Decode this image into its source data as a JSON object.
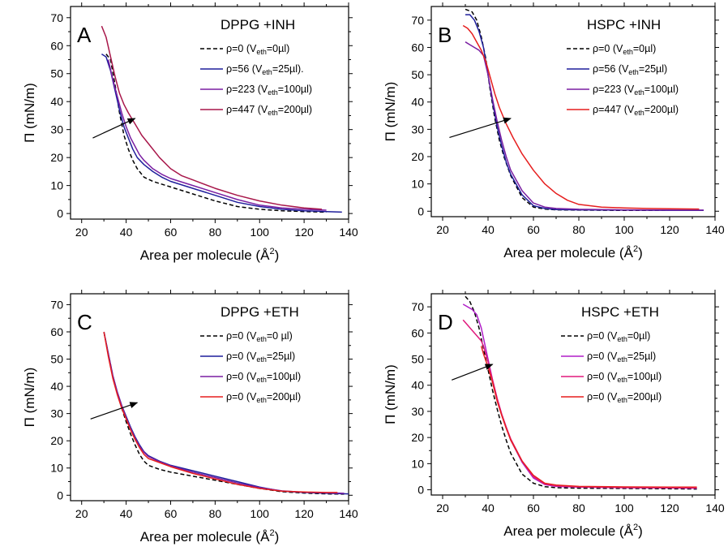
{
  "figure": {
    "background": "#ffffff"
  },
  "chart_data": [
    {
      "letter": "A",
      "type": "line",
      "title": "DPPG +INH",
      "xlabel": "Area per molecule",
      "xlabel_unit": "Å",
      "xlabel_exp": "2",
      "ylabel": "Π (mN/m)",
      "xlim": [
        15,
        140
      ],
      "ylim": [
        -2,
        74
      ],
      "xticks": [
        20,
        40,
        60,
        80,
        100,
        120,
        140
      ],
      "yticks": [
        0,
        10,
        20,
        30,
        40,
        50,
        60,
        70
      ],
      "grid": false,
      "legend_position": "top-right",
      "arrow": {
        "from": [
          25,
          27
        ],
        "to": [
          44,
          34
        ]
      },
      "series": [
        {
          "name": "ρ=0    (V_eth=0µl)",
          "legend_main": "ρ=0    (V",
          "legend_sub": "eth",
          "legend_end": "=0µl)",
          "color": "#000000",
          "dash": "5,3",
          "x": [
            31,
            33,
            35,
            37,
            39,
            41,
            43,
            45,
            48,
            52,
            60,
            70,
            80,
            90,
            100,
            110,
            120,
            130
          ],
          "y": [
            57,
            55,
            46,
            36,
            28,
            23,
            19,
            16,
            13,
            11.5,
            9.5,
            7,
            4.5,
            2.5,
            1.5,
            1,
            0.7,
            0.5
          ]
        },
        {
          "name": "ρ=56   (V_eth=25µl).",
          "legend_main": "ρ=56   (V",
          "legend_sub": "eth",
          "legend_end": "=25µl).",
          "color": "#1f1f9c",
          "dash": "",
          "x": [
            29,
            31,
            33,
            35,
            37,
            39,
            41,
            43,
            45,
            48,
            52,
            56,
            60,
            70,
            80,
            90,
            100,
            110,
            120,
            130,
            137
          ],
          "y": [
            57,
            56,
            51,
            44,
            37,
            31,
            27,
            23,
            20,
            17.5,
            15,
            13,
            11.5,
            9,
            6.5,
            4,
            2.5,
            1.5,
            1,
            0.7,
            0.5
          ]
        },
        {
          "name": "ρ=223 (V_eth=100µl)",
          "legend_main": "ρ=223 (V",
          "legend_sub": "eth",
          "legend_end": "=100µl)",
          "color": "#7a1fa2",
          "dash": "",
          "x": [
            32,
            34,
            36,
            38,
            40,
            42,
            44,
            46,
            48,
            52,
            56,
            60,
            70,
            80,
            90,
            100,
            110,
            120,
            130
          ],
          "y": [
            55,
            48,
            42,
            36,
            31,
            27,
            24,
            21,
            19,
            16,
            14,
            12.5,
            10,
            7.5,
            5,
            3,
            2,
            1.5,
            1.2
          ]
        },
        {
          "name": "ρ=447 (V_eth=200µl)",
          "legend_main": "ρ=447 (V",
          "legend_sub": "eth",
          "legend_end": "=200µl)",
          "color": "#a8174a",
          "dash": "",
          "x": [
            29,
            31,
            33,
            35,
            37,
            39,
            41,
            44,
            47,
            50,
            55,
            60,
            65,
            70,
            80,
            90,
            100,
            110,
            120,
            128
          ],
          "y": [
            67,
            63,
            56,
            49,
            43,
            39,
            36,
            32,
            28,
            25,
            20,
            16,
            13.5,
            12,
            9,
            6.5,
            4.5,
            3,
            2,
            1.5
          ]
        }
      ]
    },
    {
      "letter": "B",
      "type": "line",
      "title": "HSPC +INH",
      "xlabel": "Area per molecule",
      "xlabel_unit": "Å",
      "xlabel_exp": "2",
      "ylabel": "Π (mN/m)",
      "xlim": [
        15,
        140
      ],
      "ylim": [
        -2,
        75
      ],
      "xticks": [
        20,
        40,
        60,
        80,
        100,
        120,
        140
      ],
      "yticks": [
        0,
        10,
        20,
        30,
        40,
        50,
        60,
        70
      ],
      "grid": false,
      "legend_position": "top-right",
      "arrow": {
        "from": [
          23,
          27
        ],
        "to": [
          50,
          34
        ]
      },
      "series": [
        {
          "name": "ρ=0    (V_eth=0µl)",
          "legend_main": "ρ=0    (V",
          "legend_sub": "eth",
          "legend_end": "=0µl)",
          "color": "#000000",
          "dash": "5,3",
          "x": [
            30,
            33,
            35,
            37,
            39,
            41,
            43,
            45,
            47,
            50,
            55,
            60,
            65,
            70,
            80,
            100,
            120,
            135
          ],
          "y": [
            74,
            73,
            70,
            64,
            56,
            44,
            34,
            26,
            20,
            13,
            5,
            1.5,
            0.8,
            0.5,
            0.4,
            0.3,
            0.3,
            0.3
          ]
        },
        {
          "name": "ρ=56   (V_eth=25µl)",
          "legend_main": "ρ=56   (V",
          "legend_sub": "eth",
          "legend_end": "=25µl)",
          "color": "#1f1f9c",
          "dash": "",
          "x": [
            30,
            32,
            34,
            36,
            38,
            40,
            42,
            44,
            46,
            48,
            50,
            55,
            60,
            65,
            70,
            80,
            100,
            120,
            135
          ],
          "y": [
            72,
            72,
            70,
            66,
            60,
            50,
            40,
            31,
            24,
            18,
            13.5,
            6,
            2,
            1,
            0.6,
            0.5,
            0.4,
            0.3,
            0.3
          ]
        },
        {
          "name": "ρ=223 (V_eth=100µl)",
          "legend_main": "ρ=223 (V",
          "legend_sub": "eth",
          "legend_end": "=100µl)",
          "color": "#7a1fa2",
          "dash": "",
          "x": [
            30,
            32,
            34,
            36,
            38,
            40,
            42,
            44,
            46,
            48,
            50,
            55,
            60,
            65,
            70,
            80,
            100,
            120,
            135
          ],
          "y": [
            62,
            61,
            60,
            59,
            57,
            50,
            41,
            33,
            26,
            20,
            15,
            7.5,
            3,
            1.5,
            1,
            0.7,
            0.5,
            0.4,
            0.4
          ]
        },
        {
          "name": "ρ=447 (V_eth=200µl)",
          "legend_main": "ρ=447 (V",
          "legend_sub": "eth",
          "legend_end": "=200µl)",
          "color": "#e61e1e",
          "dash": "",
          "x": [
            29,
            31,
            33,
            35,
            37,
            39,
            41,
            43,
            45,
            48,
            51,
            55,
            60,
            65,
            70,
            75,
            80,
            90,
            100,
            110,
            120,
            133
          ],
          "y": [
            68,
            67,
            65,
            62,
            59,
            55,
            49,
            43,
            38,
            32,
            27,
            21,
            15,
            10,
            6.5,
            4,
            2.5,
            1.5,
            1.2,
            1,
            0.9,
            0.8
          ]
        }
      ]
    },
    {
      "letter": "C",
      "type": "line",
      "title": "DPPG +ETH",
      "xlabel": "Area per molecule",
      "xlabel_unit": "Å",
      "xlabel_exp": "2",
      "ylabel": "Π (mN/m)",
      "xlim": [
        15,
        140
      ],
      "ylim": [
        -2,
        74
      ],
      "xticks": [
        20,
        40,
        60,
        80,
        100,
        120,
        140
      ],
      "yticks": [
        0,
        10,
        20,
        30,
        40,
        50,
        60,
        70
      ],
      "grid": false,
      "legend_position": "top-right",
      "arrow": {
        "from": [
          24,
          28
        ],
        "to": [
          45,
          34
        ]
      },
      "series": [
        {
          "name": "ρ=0 (V_eth=0 µl)",
          "legend_main": "ρ=0 (V",
          "legend_sub": "eth",
          "legend_end": "=0 µl)",
          "color": "#000000",
          "dash": "5,3",
          "x": [
            30,
            32,
            34,
            36,
            38,
            40,
            42,
            44,
            46,
            48,
            50,
            55,
            60,
            70,
            80,
            90,
            100,
            110,
            120,
            130,
            138
          ],
          "y": [
            60,
            52,
            44,
            37.5,
            32,
            27,
            22.5,
            18.5,
            15,
            12.5,
            11,
            9.5,
            8.5,
            7,
            5.5,
            4,
            2.5,
            1.3,
            0.8,
            0.5,
            0.4
          ]
        },
        {
          "name": "ρ=0 (V_eth=25µl)",
          "legend_main": "ρ=0 (V",
          "legend_sub": "eth",
          "legend_end": "=25µl)",
          "color": "#1f1f9c",
          "dash": "",
          "x": [
            30,
            32,
            34,
            36,
            38,
            40,
            42,
            44,
            46,
            48,
            50,
            55,
            60,
            70,
            80,
            90,
            100,
            110,
            120,
            130,
            140
          ],
          "y": [
            60,
            52,
            44,
            38,
            33,
            29,
            25,
            21.5,
            18.5,
            16,
            14.5,
            12.5,
            11,
            9,
            7,
            5,
            3,
            1.5,
            1,
            0.7,
            0.5
          ]
        },
        {
          "name": "ρ=0 (V_eth=100µl)",
          "legend_main": "ρ=0 (V",
          "legend_sub": "eth",
          "legend_end": "=100µl)",
          "color": "#7a1fa2",
          "dash": "",
          "x": [
            30,
            32,
            34,
            36,
            38,
            40,
            42,
            44,
            46,
            48,
            50,
            55,
            60,
            70,
            80,
            90,
            100,
            110,
            120,
            130,
            138
          ],
          "y": [
            60,
            52,
            44,
            38,
            33,
            28.5,
            24.5,
            21,
            18,
            15.8,
            14.2,
            12.3,
            10.8,
            8.5,
            6.5,
            4.5,
            2.8,
            1.6,
            1.1,
            0.9,
            0.7
          ]
        },
        {
          "name": "ρ=0 (V_eth=200µl)",
          "legend_main": "ρ=0 (V",
          "legend_sub": "eth",
          "legend_end": "=200µl)",
          "color": "#e61e1e",
          "dash": "",
          "x": [
            30,
            32,
            34,
            36,
            38,
            40,
            42,
            44,
            46,
            48,
            50,
            55,
            60,
            70,
            80,
            90,
            100,
            110,
            120,
            130,
            135
          ],
          "y": [
            60,
            51,
            43,
            37,
            32,
            28,
            24,
            20.5,
            17.5,
            15,
            13.5,
            12,
            10.5,
            8,
            6,
            4,
            2.5,
            1.5,
            1.2,
            1,
            1
          ]
        }
      ]
    },
    {
      "letter": "D",
      "type": "line",
      "title": "HSPC +ETH",
      "xlabel": "Area per molecule",
      "xlabel_unit": "Å",
      "xlabel_exp": "2",
      "ylabel": "Π (mN/m)",
      "xlim": [
        15,
        140
      ],
      "ylim": [
        -2,
        75
      ],
      "xticks": [
        20,
        40,
        60,
        80,
        100,
        120,
        140
      ],
      "yticks": [
        0,
        10,
        20,
        30,
        40,
        50,
        60,
        70
      ],
      "grid": false,
      "legend_position": "top-right",
      "arrow": {
        "from": [
          24,
          42
        ],
        "to": [
          42,
          48
        ]
      },
      "series": [
        {
          "name": "ρ=0 (V_eth=0µl)",
          "legend_main": "ρ=0 (V",
          "legend_sub": "eth",
          "legend_end": "=0µl)",
          "color": "#000000",
          "dash": "5,3",
          "x": [
            30,
            32,
            34,
            36,
            38,
            40,
            42,
            44,
            46,
            48,
            50,
            55,
            60,
            65,
            70,
            80,
            100,
            120,
            132
          ],
          "y": [
            74,
            72,
            68,
            62,
            54,
            46,
            38,
            31,
            24.5,
            19,
            14,
            6,
            2.5,
            1.2,
            0.8,
            0.6,
            0.5,
            0.4,
            0.3
          ]
        },
        {
          "name": "ρ=0 (V_eth=25µl)",
          "legend_main": "ρ=0 (V",
          "legend_sub": "eth",
          "legend_end": "=25µl)",
          "color": "#b01ec8",
          "dash": "",
          "x": [
            29,
            31,
            33,
            35,
            37,
            38,
            40,
            42,
            44,
            46,
            48,
            50,
            55,
            60,
            65,
            70,
            80,
            100,
            120,
            132
          ],
          "y": [
            71,
            70,
            69,
            67,
            62,
            58,
            50,
            42,
            35,
            29,
            24,
            19,
            10.5,
            4.5,
            2,
            1.3,
            1,
            0.8,
            0.7,
            0.6
          ]
        },
        {
          "name": "ρ=0 (V_eth=100µl)",
          "legend_main": "ρ=0 (V",
          "legend_sub": "eth",
          "legend_end": "=100µl)",
          "color": "#e0197d",
          "dash": "",
          "x": [
            29,
            31,
            33,
            35,
            37,
            38,
            40,
            42,
            44,
            46,
            48,
            50,
            55,
            60,
            65,
            70,
            80,
            100,
            120,
            132
          ],
          "y": [
            65,
            63,
            61,
            59,
            57,
            55,
            49,
            42,
            35,
            29,
            24,
            19.5,
            11,
            5,
            2.2,
            1.5,
            1.1,
            0.9,
            0.8,
            0.7
          ]
        },
        {
          "name": "ρ=0 (V_eth=200µl)",
          "legend_main": "ρ=0 (V",
          "legend_sub": "eth",
          "legend_end": "=200µl)",
          "color": "#e61e1e",
          "dash": "",
          "x": [
            37,
            38,
            40,
            42,
            44,
            46,
            48,
            50,
            55,
            60,
            65,
            70,
            80,
            100,
            120,
            132
          ],
          "y": [
            55,
            52,
            47,
            41,
            34,
            28.5,
            23.5,
            19,
            11,
            5.5,
            2.5,
            1.8,
            1.3,
            1.1,
            1,
            1
          ]
        }
      ]
    }
  ]
}
